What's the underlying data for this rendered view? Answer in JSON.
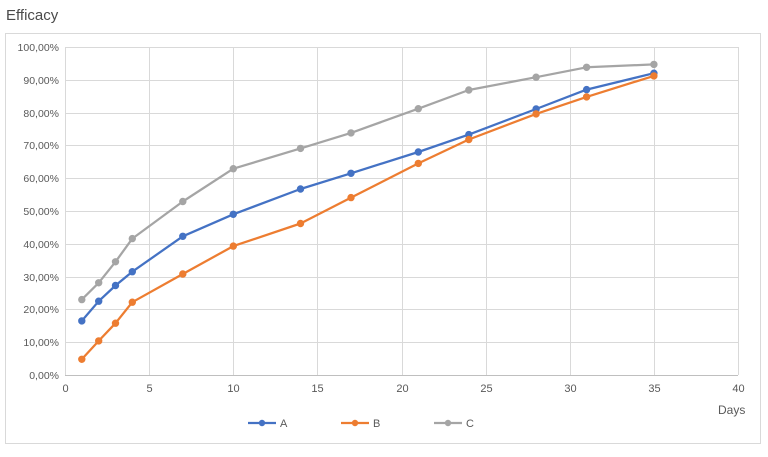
{
  "chart_data": {
    "type": "line",
    "ylabel": "Efficacy",
    "xlabel": "Days",
    "xlim": [
      0,
      40
    ],
    "ylim": [
      0,
      100
    ],
    "x_ticks": [
      0,
      5,
      10,
      15,
      20,
      25,
      30,
      35,
      40
    ],
    "y_ticks": [
      "0,00%",
      "10,00%",
      "20,00%",
      "30,00%",
      "40,00%",
      "50,00%",
      "60,00%",
      "70,00%",
      "80,00%",
      "90,00%",
      "100,00%"
    ],
    "grid": true,
    "legend_position": "bottom",
    "series": [
      {
        "name": "A",
        "color": "#4472C4",
        "x": [
          1,
          2,
          3,
          4,
          7,
          10,
          14,
          17,
          21,
          24,
          28,
          31,
          35
        ],
        "y": [
          16.5,
          22.5,
          27.3,
          31.5,
          42.3,
          49.0,
          56.7,
          61.5,
          68.0,
          73.3,
          81.1,
          87.0,
          92.0
        ]
      },
      {
        "name": "B",
        "color": "#ED7D31",
        "x": [
          1,
          2,
          3,
          4,
          7,
          10,
          14,
          17,
          21,
          24,
          28,
          31,
          35
        ],
        "y": [
          4.8,
          10.4,
          15.8,
          22.2,
          30.8,
          39.3,
          46.2,
          54.1,
          64.5,
          71.8,
          79.6,
          84.8,
          91.2
        ]
      },
      {
        "name": "C",
        "color": "#A5A5A5",
        "x": [
          1,
          2,
          3,
          4,
          7,
          10,
          14,
          17,
          21,
          24,
          28,
          31,
          35
        ],
        "y": [
          23.0,
          28.1,
          34.5,
          41.6,
          52.9,
          62.9,
          69.1,
          73.8,
          81.2,
          86.9,
          90.8,
          93.8,
          94.7
        ]
      }
    ]
  }
}
